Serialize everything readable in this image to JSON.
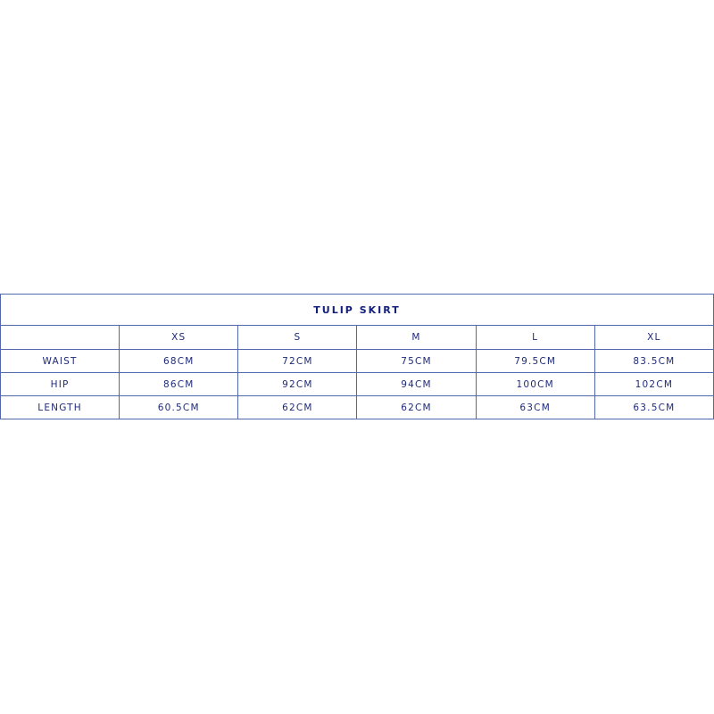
{
  "title": "TULIP SKIRT",
  "sizes": [
    "XS",
    "S",
    "M",
    "L",
    "XL"
  ],
  "rows": [
    {
      "label": "WAIST",
      "values": [
        "68CM",
        "72CM",
        "75CM",
        "79.5CM",
        "83.5CM"
      ]
    },
    {
      "label": "HIP",
      "values": [
        "86CM",
        "92CM",
        "94CM",
        "100CM",
        "102CM"
      ]
    },
    {
      "label": "LENGTH",
      "values": [
        "60.5CM",
        "62CM",
        "62CM",
        "63CM",
        "63.5CM"
      ]
    }
  ],
  "colors": {
    "text": "#1f2a7a",
    "border": "#5468ad"
  }
}
